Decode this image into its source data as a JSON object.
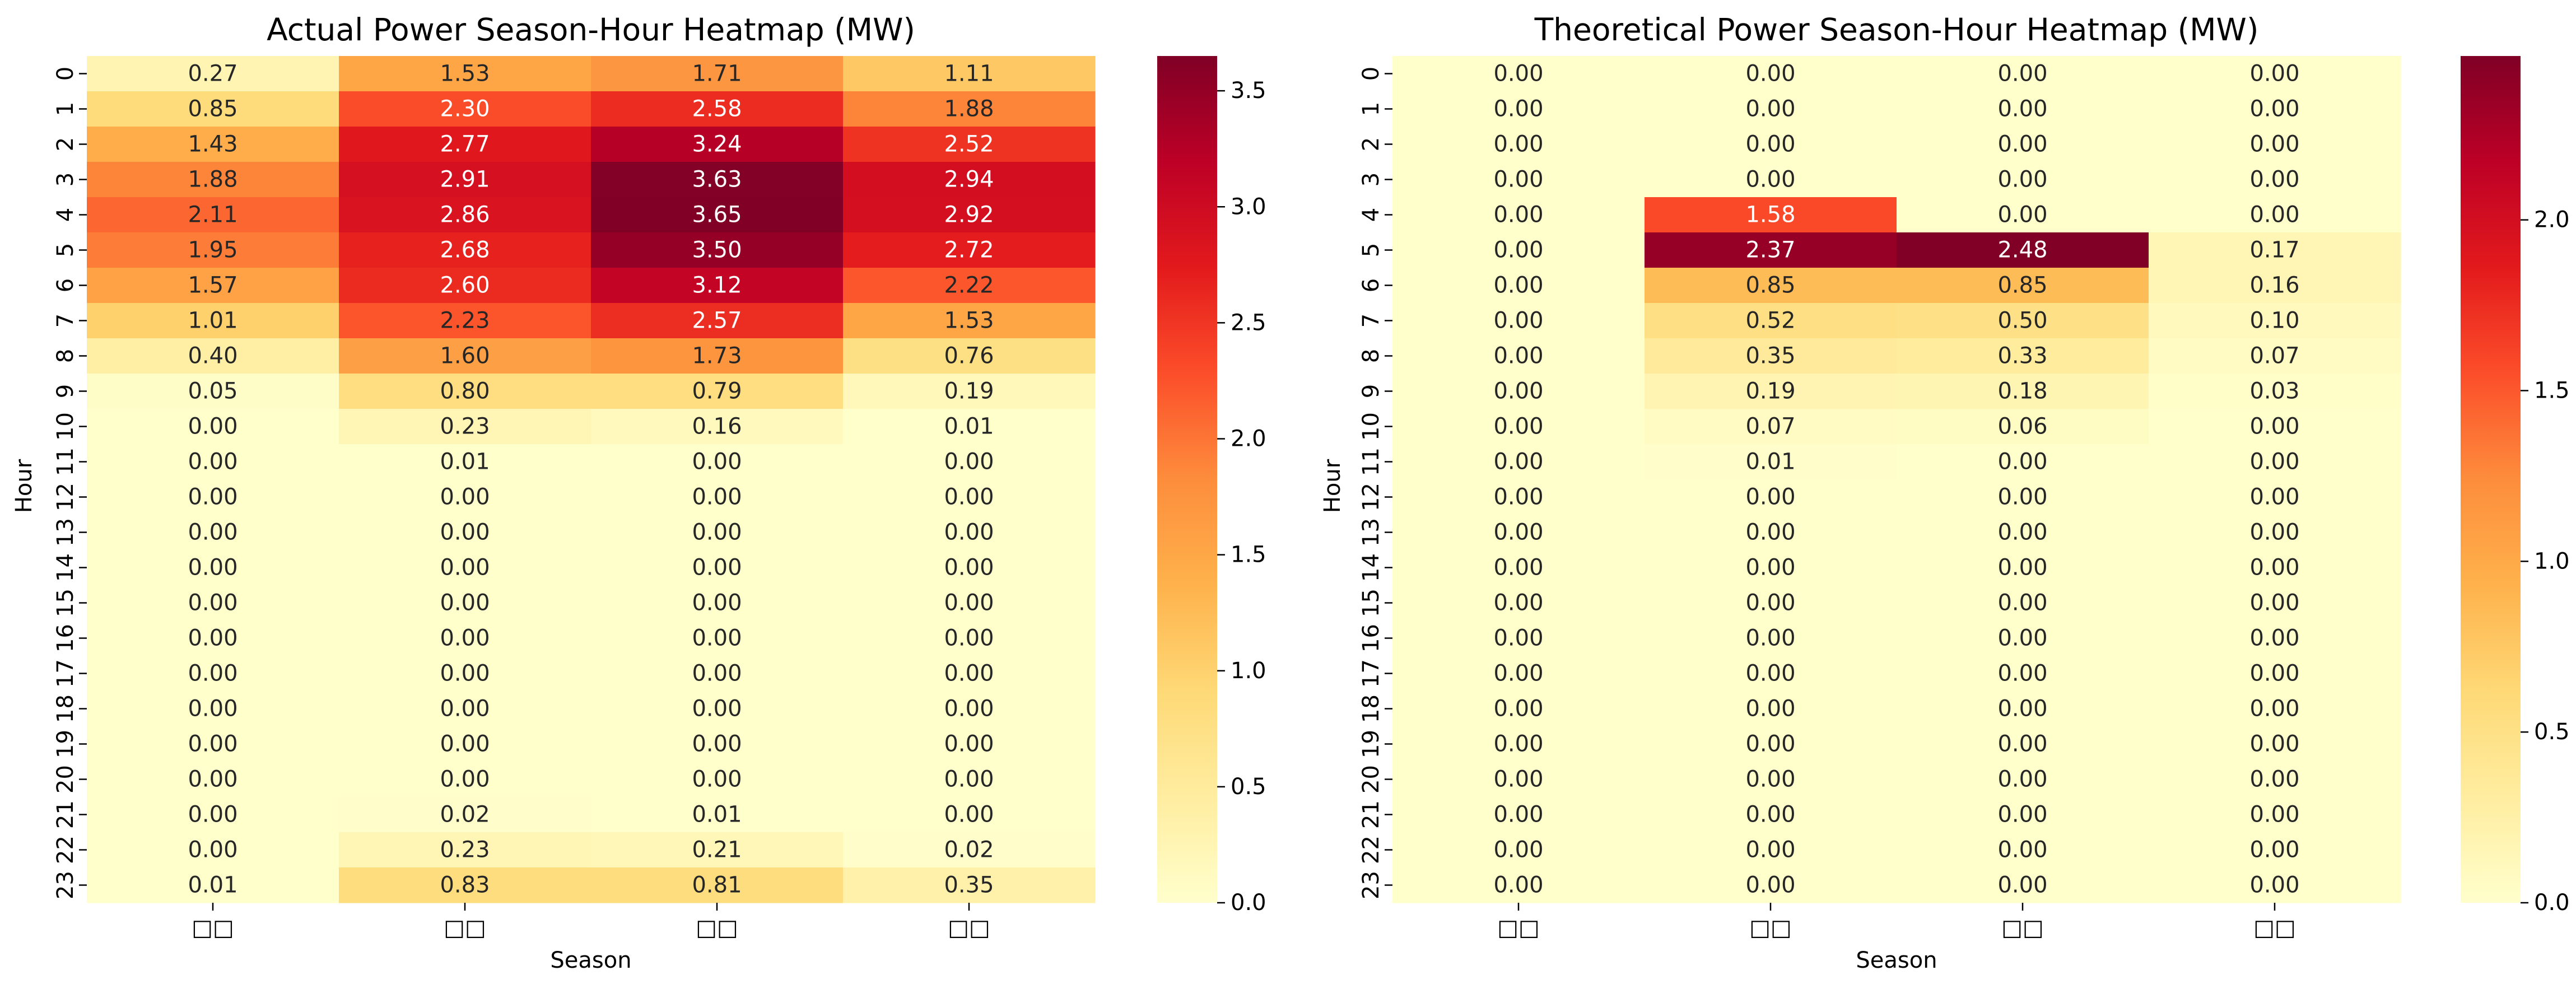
{
  "chart_data": [
    {
      "type": "heatmap",
      "title": "Actual Power Season-Hour Heatmap (MW)",
      "xlabel": "Season",
      "ylabel": "Hour",
      "x_categories": [
        "□□",
        "□□",
        "□□",
        "□□"
      ],
      "y_categories": [
        "0",
        "1",
        "2",
        "3",
        "4",
        "5",
        "6",
        "7",
        "8",
        "9",
        "10",
        "11",
        "12",
        "13",
        "14",
        "15",
        "16",
        "17",
        "18",
        "19",
        "20",
        "21",
        "22",
        "23"
      ],
      "colormap": "YlOrRd",
      "colorbar": {
        "vmin": 0,
        "vmax": 3.65,
        "ticks": [
          "0.0",
          "0.5",
          "1.0",
          "1.5",
          "2.0",
          "2.5",
          "3.0",
          "3.5"
        ]
      },
      "values": [
        [
          0.27,
          1.53,
          1.71,
          1.11
        ],
        [
          0.85,
          2.3,
          2.58,
          1.88
        ],
        [
          1.43,
          2.77,
          3.24,
          2.52
        ],
        [
          1.88,
          2.91,
          3.63,
          2.94
        ],
        [
          2.11,
          2.86,
          3.65,
          2.92
        ],
        [
          1.95,
          2.68,
          3.5,
          2.72
        ],
        [
          1.57,
          2.6,
          3.12,
          2.22
        ],
        [
          1.01,
          2.23,
          2.57,
          1.53
        ],
        [
          0.4,
          1.6,
          1.73,
          0.76
        ],
        [
          0.05,
          0.8,
          0.79,
          0.19
        ],
        [
          0.0,
          0.23,
          0.16,
          0.01
        ],
        [
          0.0,
          0.01,
          0.0,
          0.0
        ],
        [
          0.0,
          0.0,
          0.0,
          0.0
        ],
        [
          0.0,
          0.0,
          0.0,
          0.0
        ],
        [
          0.0,
          0.0,
          0.0,
          0.0
        ],
        [
          0.0,
          0.0,
          0.0,
          0.0
        ],
        [
          0.0,
          0.0,
          0.0,
          0.0
        ],
        [
          0.0,
          0.0,
          0.0,
          0.0
        ],
        [
          0.0,
          0.0,
          0.0,
          0.0
        ],
        [
          0.0,
          0.0,
          0.0,
          0.0
        ],
        [
          0.0,
          0.0,
          0.0,
          0.0
        ],
        [
          0.0,
          0.02,
          0.01,
          0.0
        ],
        [
          0.0,
          0.23,
          0.21,
          0.02
        ],
        [
          0.01,
          0.83,
          0.81,
          0.35
        ]
      ]
    },
    {
      "type": "heatmap",
      "title": "Theoretical Power Season-Hour Heatmap (MW)",
      "xlabel": "Season",
      "ylabel": "Hour",
      "x_categories": [
        "□□",
        "□□",
        "□□",
        "□□"
      ],
      "y_categories": [
        "0",
        "1",
        "2",
        "3",
        "4",
        "5",
        "6",
        "7",
        "8",
        "9",
        "10",
        "11",
        "12",
        "13",
        "14",
        "15",
        "16",
        "17",
        "18",
        "19",
        "20",
        "21",
        "22",
        "23"
      ],
      "colormap": "YlOrRd",
      "colorbar": {
        "vmin": 0,
        "vmax": 2.48,
        "ticks": [
          "0.0",
          "0.5",
          "1.0",
          "1.5",
          "2.0"
        ]
      },
      "values": [
        [
          0.0,
          0.0,
          0.0,
          0.0
        ],
        [
          0.0,
          0.0,
          0.0,
          0.0
        ],
        [
          0.0,
          0.0,
          0.0,
          0.0
        ],
        [
          0.0,
          0.0,
          0.0,
          0.0
        ],
        [
          0.0,
          1.58,
          0.0,
          0.0
        ],
        [
          0.0,
          2.37,
          2.48,
          0.17
        ],
        [
          0.0,
          0.85,
          0.85,
          0.16
        ],
        [
          0.0,
          0.52,
          0.5,
          0.1
        ],
        [
          0.0,
          0.35,
          0.33,
          0.07
        ],
        [
          0.0,
          0.19,
          0.18,
          0.03
        ],
        [
          0.0,
          0.07,
          0.06,
          0.0
        ],
        [
          0.0,
          0.01,
          0.0,
          0.0
        ],
        [
          0.0,
          0.0,
          0.0,
          0.0
        ],
        [
          0.0,
          0.0,
          0.0,
          0.0
        ],
        [
          0.0,
          0.0,
          0.0,
          0.0
        ],
        [
          0.0,
          0.0,
          0.0,
          0.0
        ],
        [
          0.0,
          0.0,
          0.0,
          0.0
        ],
        [
          0.0,
          0.0,
          0.0,
          0.0
        ],
        [
          0.0,
          0.0,
          0.0,
          0.0
        ],
        [
          0.0,
          0.0,
          0.0,
          0.0
        ],
        [
          0.0,
          0.0,
          0.0,
          0.0
        ],
        [
          0.0,
          0.0,
          0.0,
          0.0
        ],
        [
          0.0,
          0.0,
          0.0,
          0.0
        ],
        [
          0.0,
          0.0,
          0.0,
          0.0
        ]
      ]
    }
  ]
}
